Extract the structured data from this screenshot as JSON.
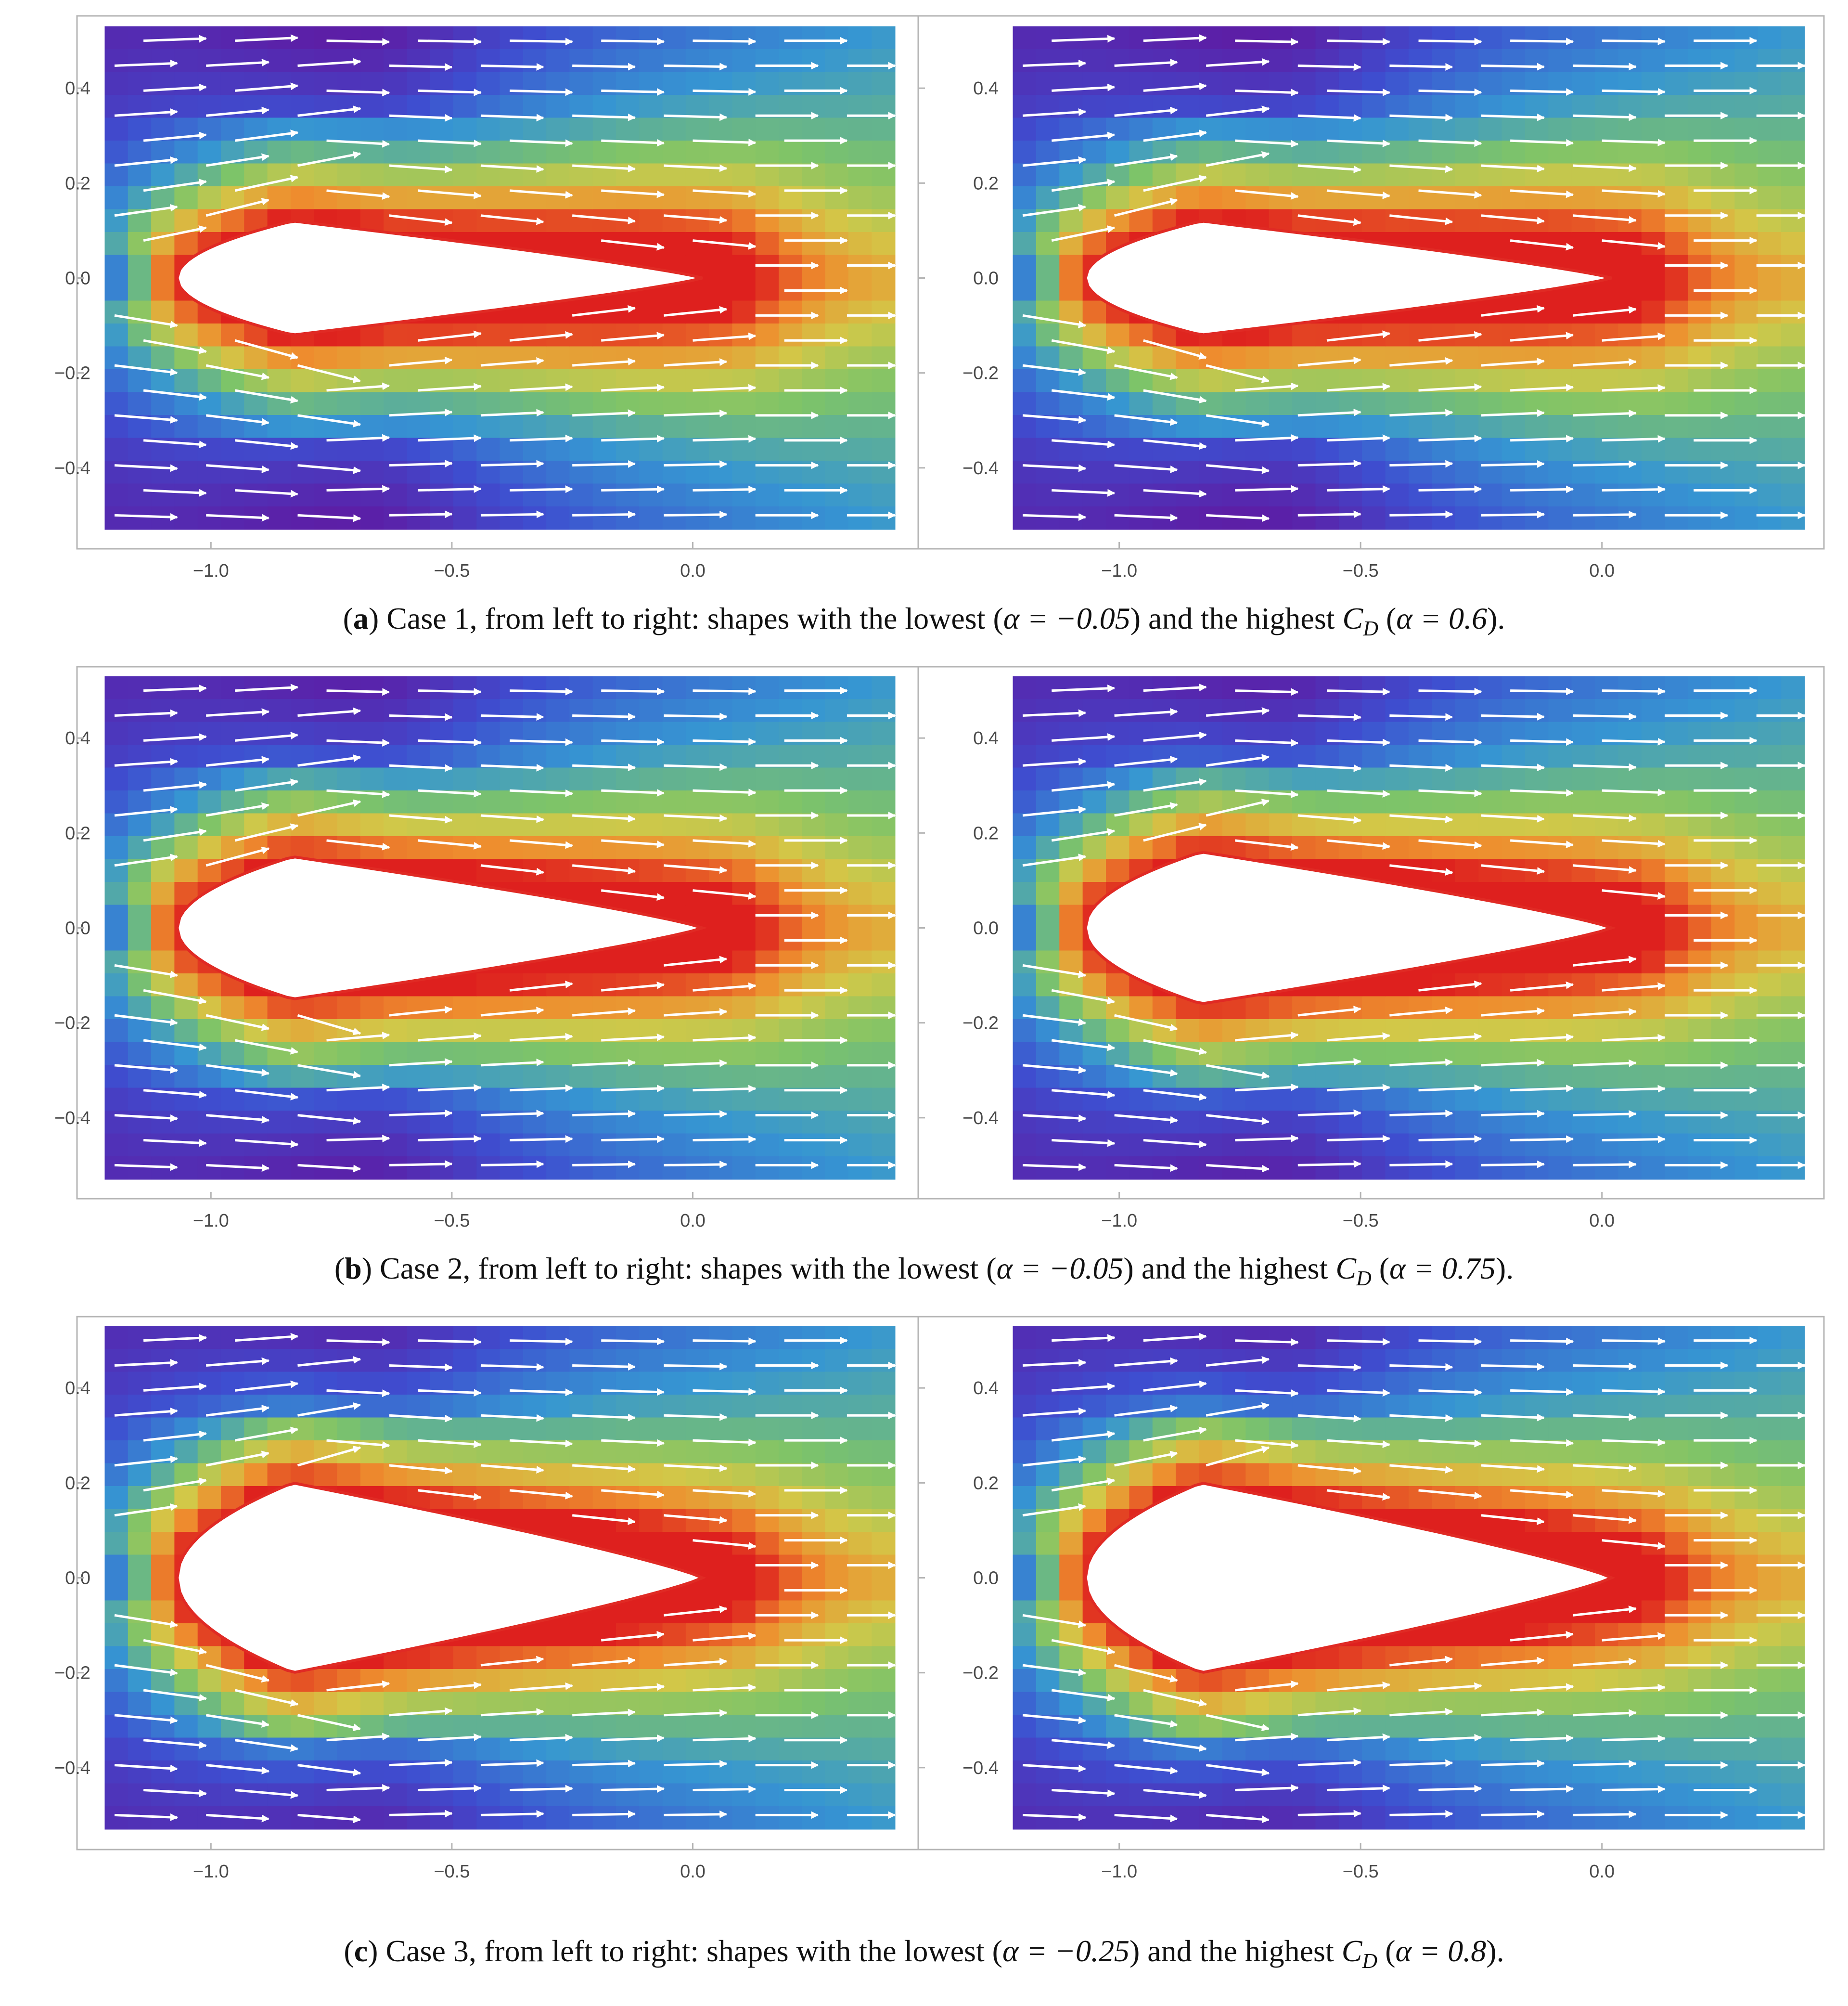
{
  "figure": {
    "rows": [
      {
        "caption": {
          "letter": "a",
          "text": " Case 1, from left to right: shapes with the lowest (",
          "alpha_low": "α = −0.05",
          "mid": ") and the highest ",
          "cd_symbol": "C",
          "cd_sub": "D",
          "alpha_high": "α = 0.6",
          "end": ")."
        }
      },
      {
        "caption": {
          "letter": "b",
          "text": " Case 2, from left to right: shapes with the lowest (",
          "alpha_low": "α = −0.05",
          "mid": ") and the highest ",
          "cd_symbol": "C",
          "cd_sub": "D",
          "alpha_high": "α = 0.75",
          "end": ")."
        }
      },
      {
        "caption": {
          "letter": "c",
          "text": " Case 3, from left to right: shapes with the lowest (",
          "alpha_low": "α = −0.25",
          "mid": ") and the highest ",
          "cd_symbol": "C",
          "cd_sub": "D",
          "alpha_high": "α = 0.8",
          "end": ")."
        }
      }
    ],
    "colors": {
      "field_low": "#5a1fa8",
      "field_mid": "#8cc45a",
      "field_high": "#e3201c",
      "arrows": "#ffffff",
      "frame": "#b4b4b4"
    }
  },
  "chart_data": [
    {
      "type": "heatmap",
      "case": 1,
      "alpha": -0.05,
      "body_half_thickness": 0.12,
      "leading_edge_x": -1.07,
      "trailing_edge_x": 0.02,
      "xlim": [
        -1.25,
        0.45
      ],
      "ylim": [
        -0.55,
        0.55
      ],
      "xticks": [
        -1.0,
        -0.5,
        0.0
      ],
      "xtick_labels": [
        "−1.0",
        "−0.5",
        "0.0"
      ],
      "yticks": [
        -0.4,
        -0.2,
        0.0,
        0.2,
        0.4
      ],
      "ytick_labels": [
        "−0.4",
        "−0.2",
        "0.0",
        "0.2",
        "0.4"
      ],
      "overlay": "stream-arrows"
    },
    {
      "type": "heatmap",
      "case": 1,
      "alpha": 0.6,
      "body_half_thickness": 0.12,
      "leading_edge_x": -1.07,
      "trailing_edge_x": 0.02,
      "xlim": [
        -1.25,
        0.45
      ],
      "ylim": [
        -0.55,
        0.55
      ],
      "xticks": [
        -1.0,
        -0.5,
        0.0
      ],
      "xtick_labels": [
        "−1.0",
        "−0.5",
        "0.0"
      ],
      "yticks": [
        -0.4,
        -0.2,
        0.0,
        0.2,
        0.4
      ],
      "ytick_labels": [
        "−0.4",
        "−0.2",
        "0.0",
        "0.2",
        "0.4"
      ],
      "overlay": "stream-arrows"
    },
    {
      "type": "heatmap",
      "case": 2,
      "alpha": -0.05,
      "body_half_thickness": 0.15,
      "leading_edge_x": -1.07,
      "trailing_edge_x": 0.02,
      "xlim": [
        -1.25,
        0.45
      ],
      "ylim": [
        -0.55,
        0.55
      ],
      "xticks": [
        -1.0,
        -0.5,
        0.0
      ],
      "xtick_labels": [
        "−1.0",
        "−0.5",
        "0.0"
      ],
      "yticks": [
        -0.4,
        -0.2,
        0.0,
        0.2,
        0.4
      ],
      "ytick_labels": [
        "−0.4",
        "−0.2",
        "0.0",
        "0.2",
        "0.4"
      ],
      "overlay": "stream-arrows"
    },
    {
      "type": "heatmap",
      "case": 2,
      "alpha": 0.75,
      "body_half_thickness": 0.16,
      "leading_edge_x": -1.07,
      "trailing_edge_x": 0.02,
      "xlim": [
        -1.25,
        0.45
      ],
      "ylim": [
        -0.55,
        0.55
      ],
      "xticks": [
        -1.0,
        -0.5,
        0.0
      ],
      "xtick_labels": [
        "−1.0",
        "−0.5",
        "0.0"
      ],
      "yticks": [
        -0.4,
        -0.2,
        0.0,
        0.2,
        0.4
      ],
      "ytick_labels": [
        "−0.4",
        "−0.2",
        "0.0",
        "0.2",
        "0.4"
      ],
      "overlay": "stream-arrows"
    },
    {
      "type": "heatmap",
      "case": 3,
      "alpha": -0.25,
      "body_half_thickness": 0.2,
      "leading_edge_x": -1.07,
      "trailing_edge_x": 0.02,
      "xlim": [
        -1.25,
        0.45
      ],
      "ylim": [
        -0.55,
        0.55
      ],
      "xticks": [
        -1.0,
        -0.5,
        0.0
      ],
      "xtick_labels": [
        "−1.0",
        "−0.5",
        "0.0"
      ],
      "yticks": [
        -0.4,
        -0.2,
        0.0,
        0.2,
        0.4
      ],
      "ytick_labels": [
        "−0.4",
        "−0.2",
        "0.0",
        "0.2",
        "0.4"
      ],
      "overlay": "stream-arrows"
    },
    {
      "type": "heatmap",
      "case": 3,
      "alpha": 0.8,
      "body_half_thickness": 0.2,
      "leading_edge_x": -1.07,
      "trailing_edge_x": 0.02,
      "xlim": [
        -1.25,
        0.45
      ],
      "ylim": [
        -0.55,
        0.55
      ],
      "xticks": [
        -1.0,
        -0.5,
        0.0
      ],
      "xtick_labels": [
        "−1.0",
        "−0.5",
        "0.0"
      ],
      "yticks": [
        -0.4,
        -0.2,
        0.0,
        0.2,
        0.4
      ],
      "ytick_labels": [
        "−0.4",
        "−0.2",
        "0.0",
        "0.2",
        "0.4"
      ],
      "overlay": "stream-arrows"
    }
  ]
}
